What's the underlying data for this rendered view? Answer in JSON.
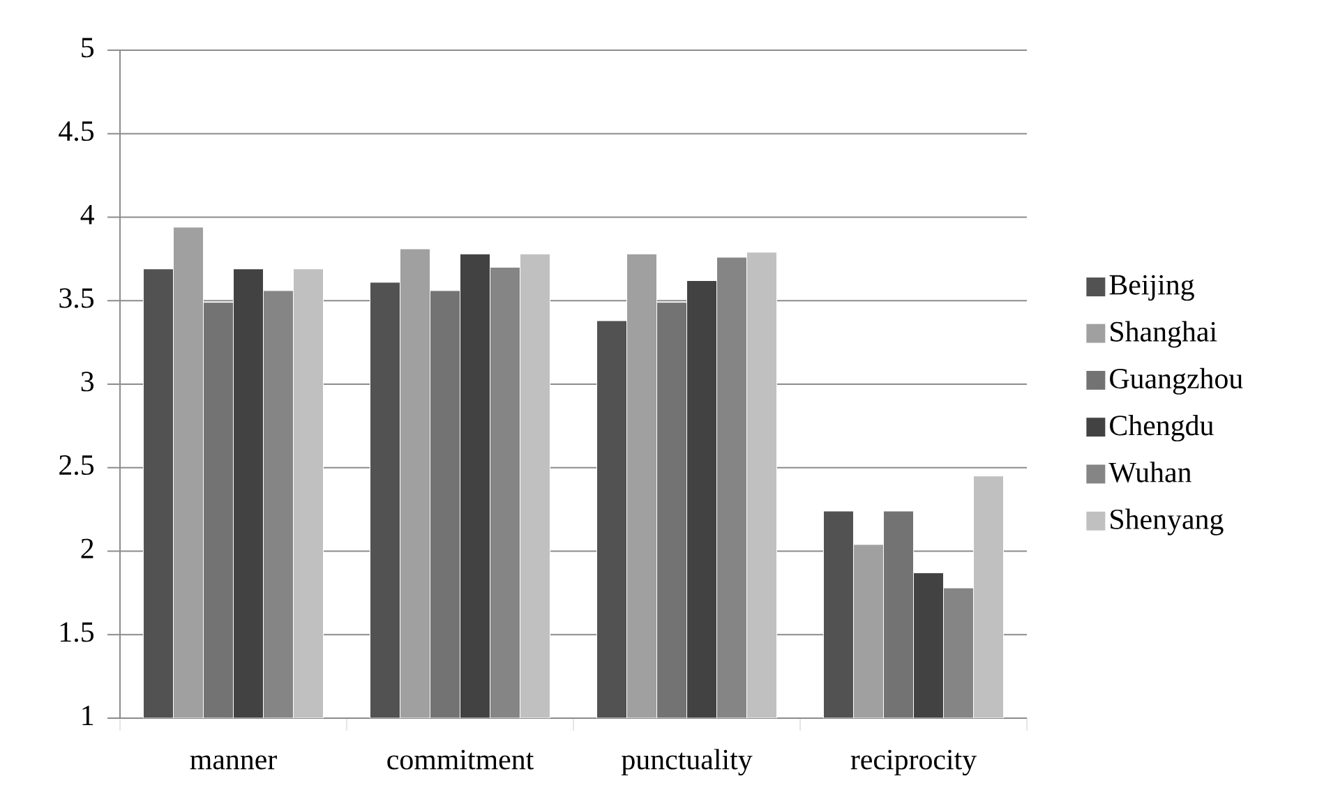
{
  "chart_data": {
    "type": "bar",
    "categories": [
      "manner",
      "commitment",
      "punctuality",
      "reciprocity"
    ],
    "series": [
      {
        "name": "Beijing",
        "color": "#525252",
        "values": [
          3.69,
          3.61,
          3.38,
          2.24
        ]
      },
      {
        "name": "Shanghai",
        "color": "#a0a0a0",
        "values": [
          3.94,
          3.81,
          3.78,
          2.04
        ]
      },
      {
        "name": "Guangzhou",
        "color": "#737373",
        "values": [
          3.49,
          3.56,
          3.49,
          2.24
        ]
      },
      {
        "name": "Chengdu",
        "color": "#424242",
        "values": [
          3.69,
          3.78,
          3.62,
          1.87
        ]
      },
      {
        "name": "Wuhan",
        "color": "#858585",
        "values": [
          3.56,
          3.7,
          3.76,
          1.78
        ]
      },
      {
        "name": "Shenyang",
        "color": "#c0c0c0",
        "values": [
          3.69,
          3.78,
          3.79,
          2.45
        ]
      }
    ],
    "ylim": [
      1,
      5
    ],
    "yticks": [
      1,
      1.5,
      2,
      2.5,
      3,
      3.5,
      4,
      4.5,
      5
    ],
    "grid": "y",
    "legend": "right"
  }
}
